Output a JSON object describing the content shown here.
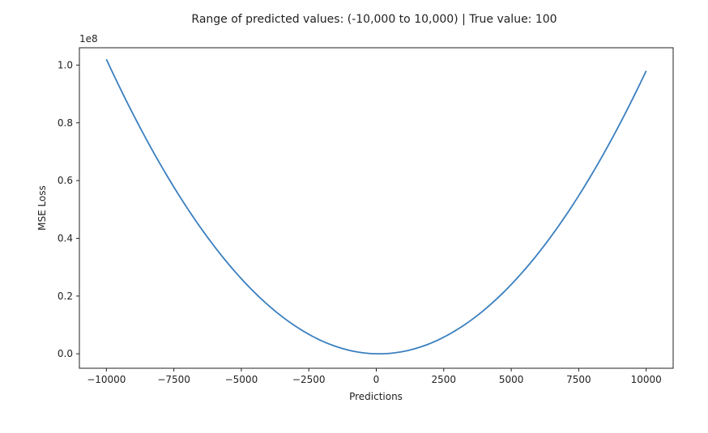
{
  "chart_data": {
    "type": "line",
    "title": "Range of predicted values: (-10,000 to 10,000) | True value: 100",
    "xlabel": "Predictions",
    "ylabel": "MSE Loss",
    "y_offset_label": "1e8",
    "xlim": [
      -11000,
      11000
    ],
    "ylim": [
      -0.05,
      1.06
    ],
    "grid": false,
    "line_color": "#3a7fc0",
    "true_value": 100,
    "series": [
      {
        "x": [
          -10000,
          -9000,
          -8000,
          -7000,
          -6000,
          -5000,
          -4000,
          -3000,
          -2000,
          -1000,
          0,
          100,
          1000,
          2000,
          3000,
          4000,
          5000,
          6000,
          7000,
          8000,
          9000,
          10000
        ],
        "values": [
          1.0201,
          0.8281,
          0.6561,
          0.5041,
          0.3721,
          0.2601,
          0.1681,
          0.0961,
          0.0441,
          0.0121,
          0.0001,
          0.0,
          0.0081,
          0.0361,
          0.0841,
          0.1521,
          0.2401,
          0.3481,
          0.4761,
          0.6241,
          0.7921,
          0.9801
        ]
      }
    ],
    "x_ticks": [
      -10000,
      -7500,
      -5000,
      -2500,
      0,
      2500,
      5000,
      7500,
      10000
    ],
    "x_tick_labels": [
      "−10000",
      "−7500",
      "−5000",
      "−2500",
      "0",
      "2500",
      "5000",
      "7500",
      "10000"
    ],
    "y_ticks": [
      0.0,
      0.2,
      0.4,
      0.6,
      0.8,
      1.0
    ],
    "y_tick_labels": [
      "0.0",
      "0.2",
      "0.4",
      "0.6",
      "0.8",
      "1.0"
    ]
  }
}
